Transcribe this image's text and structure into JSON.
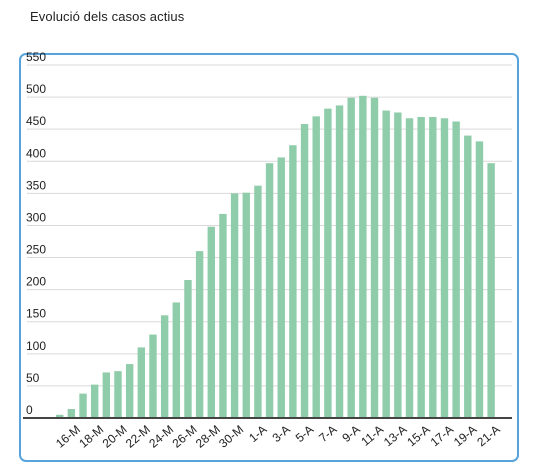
{
  "page": {
    "title": "Evolució dels casos actius"
  },
  "colors": {
    "bar": "#8fccaa",
    "grid": "#d9d9d9",
    "baseline": "#444444",
    "border": "#57a4dc",
    "text": "#222222"
  },
  "chart_data": {
    "type": "bar",
    "title": "",
    "xlabel": "",
    "ylabel": "",
    "ylim": [
      0,
      550
    ],
    "yticks": [
      0,
      50,
      100,
      150,
      200,
      250,
      300,
      350,
      400,
      450,
      500,
      550
    ],
    "grid": true,
    "legend": "none",
    "categories": [
      "",
      "16-M",
      "",
      "18-M",
      "",
      "20-M",
      "",
      "22-M",
      "",
      "24-M",
      "",
      "26-M",
      "",
      "28-M",
      "",
      "30-M",
      "",
      "1-A",
      "",
      "3-A",
      "",
      "5-A",
      "",
      "7-A",
      "",
      "9-A",
      "",
      "11-A",
      "",
      "13-A",
      "",
      "15-A",
      "",
      "17-A",
      "",
      "19-A",
      "",
      "21-A"
    ],
    "values": [
      5,
      14,
      38,
      52,
      71,
      73,
      84,
      110,
      130,
      160,
      180,
      215,
      260,
      298,
      318,
      350,
      351,
      362,
      397,
      406,
      425,
      458,
      470,
      482,
      487,
      499,
      502,
      499,
      479,
      476,
      467,
      469,
      469,
      467,
      462,
      440,
      431,
      397
    ]
  }
}
